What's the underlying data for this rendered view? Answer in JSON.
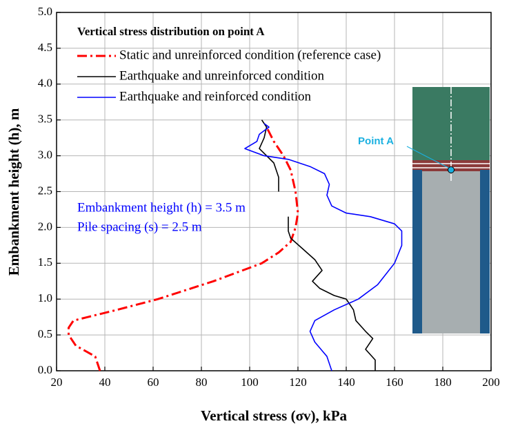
{
  "chart_data": {
    "type": "line",
    "title": "Vertical stress distribution on point A",
    "x_label": "Vertical stress (σv), kPa",
    "y_label": "Embankment height (h), m",
    "annotations": [
      "Embankment height (h) = 3.5 m",
      "Pile spacing (s) = 2.5 m"
    ],
    "inset_label": "Point A",
    "xlim": [
      20,
      200
    ],
    "ylim": [
      0,
      5
    ],
    "xticks": [
      20,
      40,
      60,
      80,
      100,
      120,
      140,
      160,
      180,
      200
    ],
    "yticks": [
      {
        "value": 0,
        "label": "0.0"
      },
      0.5,
      {
        "value": 1,
        "label": "1.0"
      },
      1.5,
      {
        "value": 2,
        "label": "2.0"
      },
      2.5,
      {
        "value": 3,
        "label": "3.0"
      },
      3.5,
      {
        "value": 4,
        "label": "4.0"
      },
      4.5,
      {
        "value": 5,
        "label": "5.0"
      }
    ],
    "grid": true,
    "series": [
      {
        "name": "Static and unreinforced condition (reference case)",
        "color": "#ff0000",
        "style": "dashdot",
        "x": [
          38,
          36,
          28,
          25,
          25,
          27,
          45,
          62,
          85,
          105,
          112,
          117,
          119,
          120,
          119,
          117,
          114,
          110,
          107
        ],
        "y": [
          0,
          0.2,
          0.35,
          0.5,
          0.6,
          0.7,
          0.85,
          1.0,
          1.25,
          1.5,
          1.65,
          1.8,
          2.0,
          2.2,
          2.5,
          2.8,
          3.0,
          3.2,
          3.4
        ]
      },
      {
        "name": "Earthquake and unreinforced condition",
        "color": "#000000",
        "style": "solid",
        "x": [
          152,
          152,
          148,
          151,
          148,
          144,
          143,
          140,
          135,
          129,
          126,
          130,
          127,
          122,
          117,
          116,
          116,
          null,
          112,
          112,
          110,
          107,
          104,
          106,
          107,
          105
        ],
        "y": [
          0,
          0.15,
          0.3,
          0.45,
          0.55,
          0.7,
          0.85,
          1.0,
          1.05,
          1.15,
          1.25,
          1.4,
          1.55,
          1.7,
          1.85,
          1.95,
          2.15,
          null,
          2.5,
          2.7,
          2.9,
          3.0,
          3.1,
          3.25,
          3.4,
          3.5
        ]
      },
      {
        "name": "Earthquake and reinforced condition",
        "color": "#0000ff",
        "style": "solid",
        "x": [
          134,
          132,
          127,
          125,
          127,
          135,
          145,
          153,
          160,
          163,
          163,
          160,
          150,
          140,
          134,
          132,
          133,
          131,
          125,
          116,
          106,
          98,
          103,
          104,
          108,
          106
        ],
        "y": [
          0,
          0.2,
          0.4,
          0.55,
          0.7,
          0.85,
          1.0,
          1.2,
          1.5,
          1.75,
          1.95,
          2.05,
          2.15,
          2.2,
          2.3,
          2.45,
          2.6,
          2.75,
          2.85,
          2.95,
          3.0,
          3.1,
          3.2,
          3.3,
          3.4,
          3.45
        ]
      }
    ]
  }
}
